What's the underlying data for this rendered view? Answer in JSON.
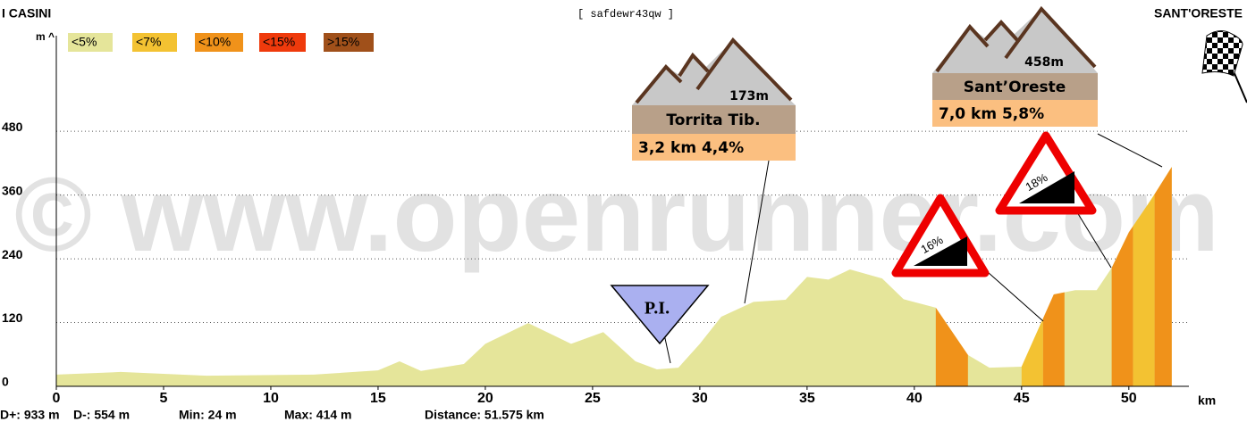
{
  "header": {
    "start": "I CASINI",
    "code": "[ safdewr43qw ]",
    "end": "SANT'ORESTE"
  },
  "chart_data": {
    "type": "area",
    "y_label": "m ^",
    "x_label": "km",
    "legend": [
      {
        "name": "<5%",
        "color": "#e5e59a"
      },
      {
        "name": "<7%",
        "color": "#f3c232"
      },
      {
        "name": "<10%",
        "color": "#f0921a"
      },
      {
        "name": "<15%",
        "color": "#ef3a0c"
      },
      {
        "name": ">15%",
        "color": "#a0501a"
      }
    ],
    "x": [
      0,
      3,
      7,
      12,
      15,
      16,
      17,
      19,
      20,
      22,
      24,
      25.5,
      27,
      28,
      29,
      30,
      31,
      32.5,
      34,
      35,
      36,
      37,
      38.5,
      39.5,
      41,
      42.5,
      43.5,
      45,
      46.5,
      47.5,
      48.5,
      49.2,
      50,
      51,
      52
    ],
    "values": [
      22,
      27,
      20,
      22,
      30,
      47,
      29,
      42,
      80,
      119,
      80,
      102,
      47,
      32,
      35,
      80,
      131,
      159,
      163,
      206,
      201,
      220,
      203,
      164,
      148,
      59,
      35,
      37,
      173,
      181,
      181,
      223,
      290,
      349,
      413
    ],
    "color": "#e5e59a",
    "segments": [
      {
        "from": 41,
        "to": 42.5,
        "color": "#f0921a"
      },
      {
        "from": 45,
        "to": 46,
        "color": "#f3c232"
      },
      {
        "from": 46,
        "to": 47,
        "color": "#f0921a"
      },
      {
        "from": 49.2,
        "to": 50.2,
        "color": "#f0921a"
      },
      {
        "from": 50.2,
        "to": 51.2,
        "color": "#f3c232"
      },
      {
        "from": 51.2,
        "to": 52,
        "color": "#f0921a"
      }
    ],
    "xlim": [
      0,
      52.8
    ],
    "ylim": [
      0,
      660
    ],
    "xticks": [
      0,
      5,
      10,
      15,
      20,
      25,
      30,
      35,
      40,
      45,
      50
    ],
    "yticks": [
      0,
      120,
      240,
      360,
      480
    ],
    "grid": true
  },
  "stats": {
    "gain": "D+: 933 m",
    "loss": "D-: 554 m",
    "min": "Min: 24 m",
    "max": "Max: 414 m",
    "distance": "Distance: 51.575 km"
  },
  "annotations": {
    "watermark": "© www.openrunner.com",
    "pi": "P.I.",
    "climb1": {
      "altitude": "173m",
      "name": "Torrita Tib.",
      "info": "3,2 km 4,4%"
    },
    "climb2": {
      "altitude": "458m",
      "name": "Sant’Oreste",
      "info": "7,0 km 5,8%"
    },
    "sign1": "16%",
    "sign2": "18%"
  }
}
